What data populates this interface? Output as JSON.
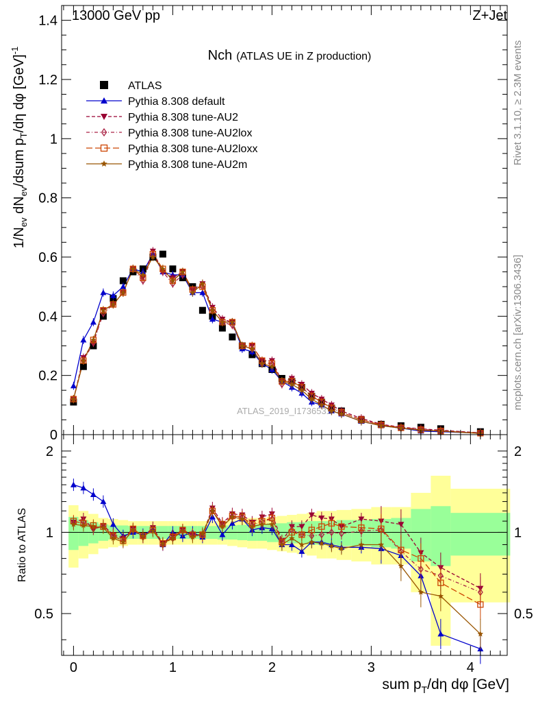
{
  "header": {
    "left": "13000 GeV pp",
    "right": "Z+Jet"
  },
  "side_labels": {
    "rivet": "Rivet 3.1.10, ≥ 2.3M events",
    "mcplots": "mcplots.cern.ch [arXiv:1306.3436]"
  },
  "watermark": "ATLAS_2019_I1736531",
  "chart_data": [
    {
      "type": "scatter",
      "panel": "main",
      "title_main": "Nch",
      "title_sub": "(ATLAS UE in Z production)",
      "ylabel": "1/N_ev dN_ev/dsum p_T/dη dφ [GeV]^-1",
      "xlim": [
        -0.12,
        4.37
      ],
      "ylim": [
        0,
        1.45
      ],
      "yticks": [
        0,
        0.2,
        0.4,
        0.6,
        0.8,
        1,
        1.2,
        1.4
      ],
      "ytick_labels": [
        "0",
        "0.2",
        "0.4",
        "0.6",
        "0.8",
        "1",
        "1.2",
        "1.4"
      ],
      "x": [
        0.0,
        0.1,
        0.2,
        0.3,
        0.4,
        0.5,
        0.6,
        0.7,
        0.8,
        0.9,
        1.0,
        1.1,
        1.2,
        1.3,
        1.4,
        1.5,
        1.6,
        1.7,
        1.8,
        1.9,
        2.0,
        2.1,
        2.2,
        2.3,
        2.4,
        2.5,
        2.6,
        2.7,
        2.9,
        3.1,
        3.3,
        3.5,
        3.7,
        4.1
      ],
      "legend": [
        "ATLAS",
        "Pythia 8.308 default",
        "Pythia 8.308 tune-AU2",
        "Pythia 8.308 tune-AU2lox",
        "Pythia 8.308 tune-AU2loxx",
        "Pythia 8.308 tune-AU2m"
      ],
      "series": [
        {
          "name": "ATLAS",
          "color": "#000000",
          "marker": "square",
          "line": "none",
          "values": [
            0.11,
            0.23,
            0.3,
            0.4,
            0.46,
            0.52,
            0.55,
            0.56,
            0.6,
            0.61,
            0.56,
            0.53,
            0.5,
            0.42,
            0.4,
            0.36,
            0.33,
            0.3,
            0.27,
            0.24,
            0.22,
            0.19,
            0.18,
            0.16,
            0.13,
            0.11,
            0.09,
            0.08,
            0.05,
            0.035,
            0.03,
            0.025,
            0.02,
            0.01
          ]
        },
        {
          "name": "Pythia 8.308 default",
          "color": "#0000cc",
          "marker": "triangle-up",
          "line": "solid",
          "values": [
            0.165,
            0.32,
            0.38,
            0.48,
            0.47,
            0.5,
            0.56,
            0.55,
            0.61,
            0.55,
            0.54,
            0.54,
            0.48,
            0.48,
            0.39,
            0.38,
            0.38,
            0.29,
            0.28,
            0.24,
            0.22,
            0.18,
            0.16,
            0.14,
            0.11,
            0.1,
            0.08,
            0.07,
            0.045,
            0.03,
            0.022,
            0.012,
            0.01,
            0.005
          ]
        },
        {
          "name": "Pythia 8.308 tune-AU2",
          "color": "#990033",
          "marker": "triangle-down",
          "line": "dashed",
          "values": [
            0.12,
            0.26,
            0.31,
            0.42,
            0.44,
            0.48,
            0.56,
            0.53,
            0.62,
            0.55,
            0.53,
            0.55,
            0.49,
            0.51,
            0.43,
            0.39,
            0.38,
            0.3,
            0.3,
            0.25,
            0.25,
            0.18,
            0.19,
            0.17,
            0.14,
            0.12,
            0.1,
            0.08,
            0.055,
            0.035,
            0.025,
            0.02,
            0.015,
            0.006
          ]
        },
        {
          "name": "Pythia 8.308 tune-AU2lox",
          "color": "#aa2244",
          "marker": "diamond-open",
          "line": "dashdot",
          "values": [
            0.12,
            0.25,
            0.31,
            0.41,
            0.44,
            0.48,
            0.56,
            0.52,
            0.61,
            0.55,
            0.51,
            0.54,
            0.49,
            0.5,
            0.42,
            0.38,
            0.37,
            0.3,
            0.29,
            0.24,
            0.24,
            0.17,
            0.18,
            0.16,
            0.13,
            0.11,
            0.09,
            0.075,
            0.05,
            0.033,
            0.024,
            0.018,
            0.013,
            0.006
          ]
        },
        {
          "name": "Pythia 8.308 tune-AU2loxx",
          "color": "#cc4400",
          "marker": "square-open",
          "line": "longdash",
          "values": [
            0.12,
            0.25,
            0.32,
            0.42,
            0.44,
            0.48,
            0.56,
            0.53,
            0.61,
            0.56,
            0.52,
            0.55,
            0.49,
            0.5,
            0.42,
            0.38,
            0.38,
            0.3,
            0.3,
            0.25,
            0.24,
            0.18,
            0.18,
            0.16,
            0.13,
            0.11,
            0.09,
            0.075,
            0.05,
            0.033,
            0.023,
            0.016,
            0.012,
            0.005
          ]
        },
        {
          "name": "Pythia 8.308 tune-AU2m",
          "color": "#995500",
          "marker": "star",
          "line": "solid",
          "values": [
            0.12,
            0.25,
            0.32,
            0.42,
            0.44,
            0.48,
            0.56,
            0.54,
            0.6,
            0.56,
            0.52,
            0.55,
            0.48,
            0.51,
            0.42,
            0.38,
            0.38,
            0.3,
            0.29,
            0.24,
            0.23,
            0.18,
            0.17,
            0.15,
            0.12,
            0.1,
            0.08,
            0.07,
            0.045,
            0.03,
            0.022,
            0.015,
            0.012,
            0.004
          ]
        }
      ]
    },
    {
      "type": "scatter",
      "panel": "ratio",
      "ylabel": "Ratio to ATLAS",
      "xlabel": "sum p_T/dη dφ [GeV]",
      "xlim": [
        -0.12,
        4.37
      ],
      "ylim": [
        0.35,
        2.3
      ],
      "yticks": [
        0.5,
        1,
        2
      ],
      "ytick_labels": [
        "0.5",
        "1",
        "2"
      ],
      "xticks": [
        0,
        1,
        2,
        3,
        4
      ],
      "xtick_labels": [
        "0",
        "1",
        "2",
        "3",
        "4"
      ],
      "x_edges": [
        -0.05,
        0.05,
        0.15,
        0.25,
        0.35,
        0.45,
        0.55,
        0.65,
        0.75,
        0.85,
        0.95,
        1.05,
        1.15,
        1.25,
        1.35,
        1.45,
        1.55,
        1.65,
        1.75,
        1.85,
        1.95,
        2.05,
        2.15,
        2.25,
        2.35,
        2.45,
        2.55,
        2.65,
        2.8,
        3.0,
        3.2,
        3.4,
        3.6,
        3.8,
        4.4
      ],
      "bands": {
        "yellow_color": "#ffff99",
        "green_color": "#99ff99",
        "yellow_half_width": [
          0.26,
          0.2,
          0.17,
          0.13,
          0.12,
          0.11,
          0.1,
          0.1,
          0.1,
          0.1,
          0.1,
          0.1,
          0.1,
          0.1,
          0.1,
          0.1,
          0.11,
          0.12,
          0.13,
          0.13,
          0.14,
          0.15,
          0.16,
          0.17,
          0.18,
          0.2,
          0.2,
          0.21,
          0.22,
          0.24,
          0.24,
          0.4,
          0.62,
          0.45
        ],
        "green_half_width": [
          0.14,
          0.11,
          0.09,
          0.07,
          0.06,
          0.06,
          0.055,
          0.055,
          0.055,
          0.055,
          0.055,
          0.055,
          0.055,
          0.055,
          0.055,
          0.06,
          0.06,
          0.065,
          0.07,
          0.07,
          0.08,
          0.08,
          0.09,
          0.09,
          0.1,
          0.1,
          0.1,
          0.11,
          0.11,
          0.12,
          0.13,
          0.22,
          0.25,
          0.18
        ]
      },
      "reference_line": 1,
      "series": [
        {
          "name": "Pythia 8.308 default",
          "values": [
            1.5,
            1.46,
            1.38,
            1.3,
            1.07,
            0.97,
            1.0,
            0.98,
            1.02,
            0.9,
            1.0,
            0.97,
            1.0,
            0.96,
            1.14,
            0.98,
            1.08,
            1.12,
            1.02,
            1.04,
            1.03,
            0.9,
            0.9,
            0.85,
            0.92,
            0.92,
            0.9,
            0.88,
            0.88,
            0.87,
            0.82,
            0.69,
            0.42,
            0.37
          ]
        },
        {
          "name": "Pythia 8.308 tune-AU2",
          "values": [
            1.09,
            1.12,
            1.03,
            1.06,
            0.98,
            0.95,
            1.03,
            0.96,
            1.04,
            0.91,
            0.97,
            1.02,
            0.98,
            0.98,
            1.23,
            1.08,
            1.17,
            1.16,
            1.09,
            1.14,
            1.17,
            0.93,
            1.05,
            1.05,
            1.16,
            1.13,
            1.12,
            1.05,
            1.12,
            1.1,
            1.07,
            0.84,
            0.74,
            0.62
          ]
        },
        {
          "name": "Pythia 8.308 tune-AU2lox",
          "values": [
            1.08,
            1.09,
            1.03,
            1.05,
            0.97,
            0.93,
            1.02,
            0.96,
            1.02,
            0.9,
            0.95,
            1.01,
            0.97,
            0.97,
            1.2,
            1.06,
            1.14,
            1.14,
            1.06,
            1.1,
            1.12,
            0.92,
            1.02,
            0.98,
            0.97,
            0.98,
            1.0,
            0.99,
            1.01,
            1.02,
            0.85,
            0.73,
            0.69,
            0.6
          ]
        },
        {
          "name": "Pythia 8.308 tune-AU2loxx",
          "values": [
            1.1,
            1.08,
            1.06,
            1.05,
            0.97,
            0.93,
            1.03,
            0.97,
            1.02,
            0.91,
            0.96,
            1.02,
            0.98,
            0.98,
            1.2,
            1.07,
            1.15,
            1.14,
            1.07,
            1.1,
            1.13,
            0.92,
            1.0,
            0.98,
            1.02,
            1.05,
            1.08,
            1.05,
            1.04,
            1.03,
            0.86,
            0.8,
            0.65,
            0.54
          ]
        },
        {
          "name": "Pythia 8.308 tune-AU2m",
          "values": [
            1.07,
            1.06,
            1.05,
            1.04,
            0.95,
            0.92,
            1.02,
            0.97,
            1.01,
            0.91,
            0.95,
            1.01,
            0.96,
            0.99,
            1.2,
            1.05,
            1.14,
            1.12,
            1.05,
            1.07,
            1.07,
            0.9,
            0.95,
            0.9,
            0.92,
            0.91,
            0.89,
            0.87,
            0.9,
            0.9,
            0.75,
            0.6,
            0.58,
            0.42
          ]
        }
      ]
    }
  ]
}
